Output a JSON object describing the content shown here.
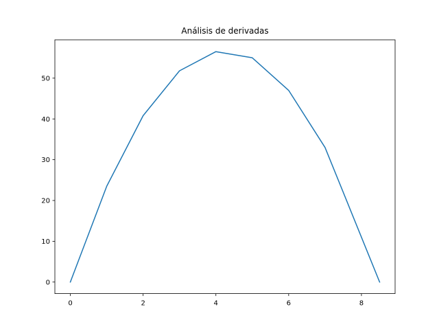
{
  "chart_data": {
    "type": "line",
    "title": "Análisis de derivadas",
    "xlabel": "",
    "ylabel": "",
    "xlim": [
      -0.425,
      8.925
    ],
    "ylim": [
      -2.83,
      59.4
    ],
    "xticks": [
      0,
      2,
      4,
      6,
      8
    ],
    "yticks": [
      0,
      10,
      20,
      30,
      40,
      50
    ],
    "grid": false,
    "series": [
      {
        "color": "#1f77b4",
        "x": [
          0,
          1,
          2,
          3,
          4,
          5,
          6,
          7,
          8.5
        ],
        "y": [
          0,
          23.5,
          40.8,
          51.8,
          56.5,
          55.0,
          47.0,
          33.0,
          0
        ]
      }
    ]
  }
}
